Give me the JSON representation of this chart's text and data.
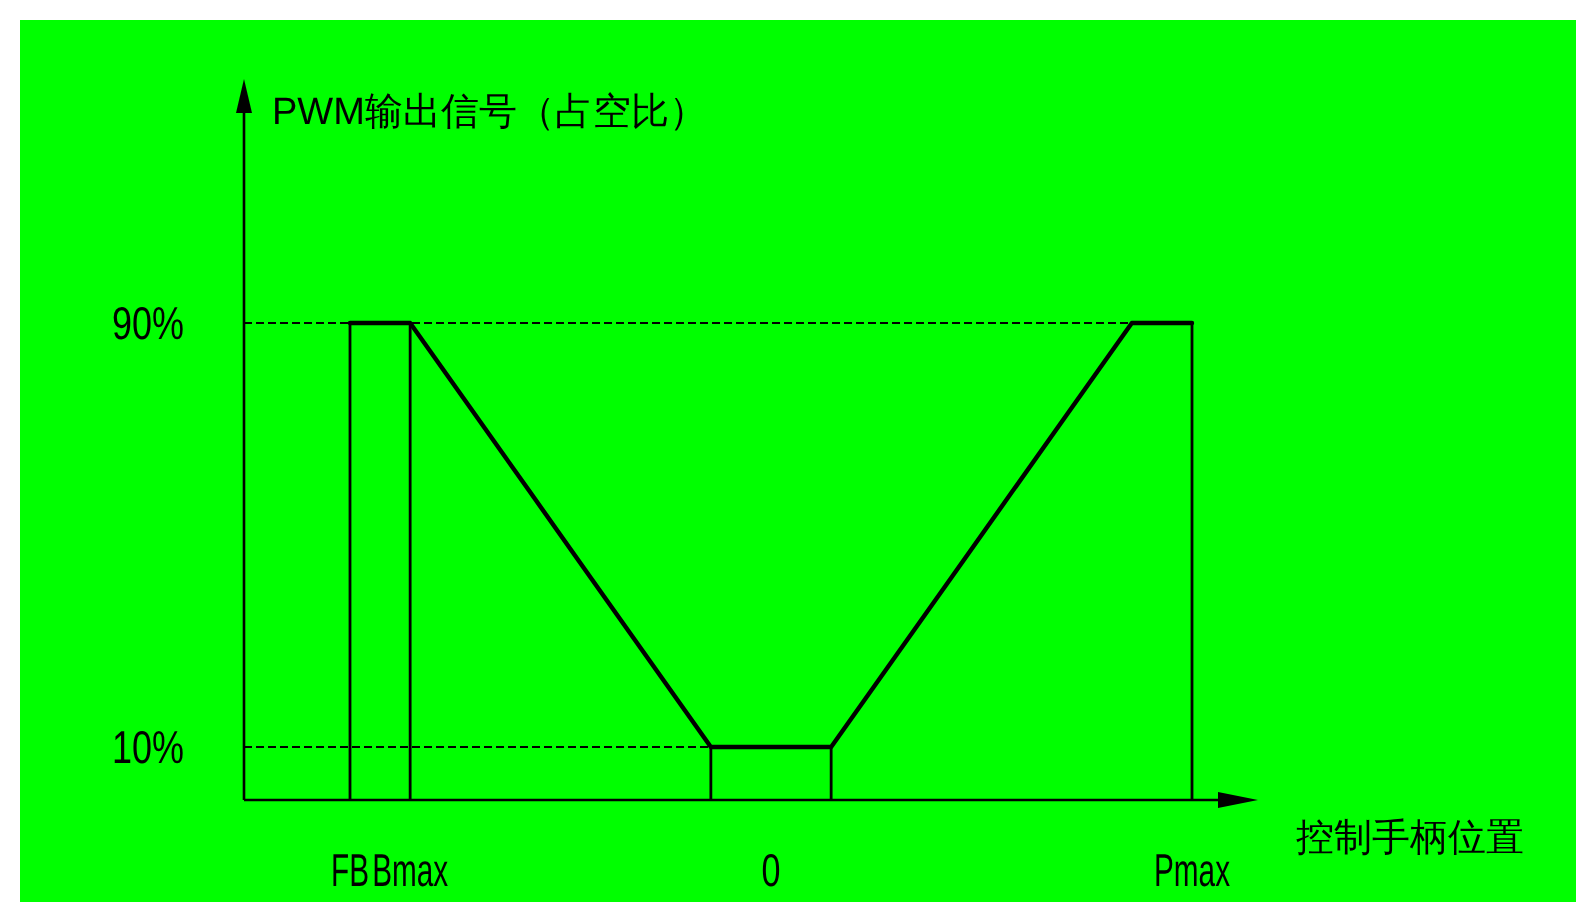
{
  "chart_data": {
    "type": "line",
    "xlabel": "控制手柄位置",
    "ylabel": "PWM输出信号（占空比）",
    "ylim": [
      0,
      130
    ],
    "categories": [
      "FB",
      "Bmax",
      null,
      null,
      null,
      null,
      null,
      "0",
      null,
      null,
      null,
      null,
      null,
      null,
      "Pmax"
    ],
    "yticks": [
      {
        "value": 10,
        "label": "10%"
      },
      {
        "value": 90,
        "label": "90%"
      }
    ],
    "series": [
      {
        "color": "#000000",
        "values": [
          90,
          90,
          74,
          58,
          42,
          26,
          10,
          10,
          10,
          26,
          42,
          58,
          74,
          90,
          90
        ]
      },
      {
        "type": "bar",
        "color": "#000000",
        "values": [
          90,
          90,
          null,
          null,
          null,
          null,
          10,
          null,
          10,
          null,
          null,
          null,
          null,
          null,
          90
        ]
      }
    ],
    "ref_lines": [
      {
        "axis": "y",
        "value": 90,
        "line_style": "dashed",
        "color": "#000000"
      },
      {
        "axis": "y",
        "value": 10,
        "line_style": "dashed",
        "color": "#000000"
      }
    ],
    "grid": false,
    "marker": "none",
    "line_style": "solid"
  }
}
